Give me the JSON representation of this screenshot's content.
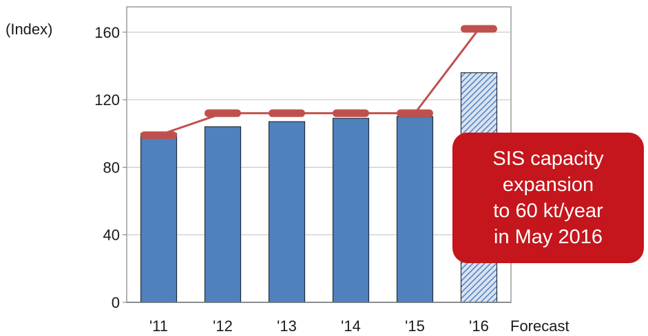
{
  "chart_data": {
    "type": "bar",
    "ylabel": "(Index)",
    "categories": [
      "'11",
      "'12",
      "'13",
      "'14",
      "'15",
      "'16"
    ],
    "category_note": "Forecast",
    "yticks": [
      "0",
      "40",
      "80",
      "120",
      "160"
    ],
    "ylim": [
      0,
      175
    ],
    "grid": true,
    "series": [
      {
        "type": "bar",
        "values": [
          100,
          104,
          107,
          109,
          110,
          136
        ],
        "forecast": [
          false,
          false,
          false,
          false,
          false,
          true
        ]
      },
      {
        "type": "line",
        "values": [
          99,
          112,
          112,
          112,
          112,
          162
        ]
      }
    ],
    "colors": {
      "bar": "#4f81bd",
      "bar_border": "#1f2d3d",
      "forecast_hatch": "#4f81bd",
      "forecast_fill": "#d9e2f1",
      "line": "#c0504d",
      "grid": "#bfbfbf"
    },
    "annotation": {
      "lines": [
        "SIS capacity",
        "expansion",
        "to 60 kt/year",
        "in May 2016"
      ],
      "color": "#c4161c"
    }
  }
}
